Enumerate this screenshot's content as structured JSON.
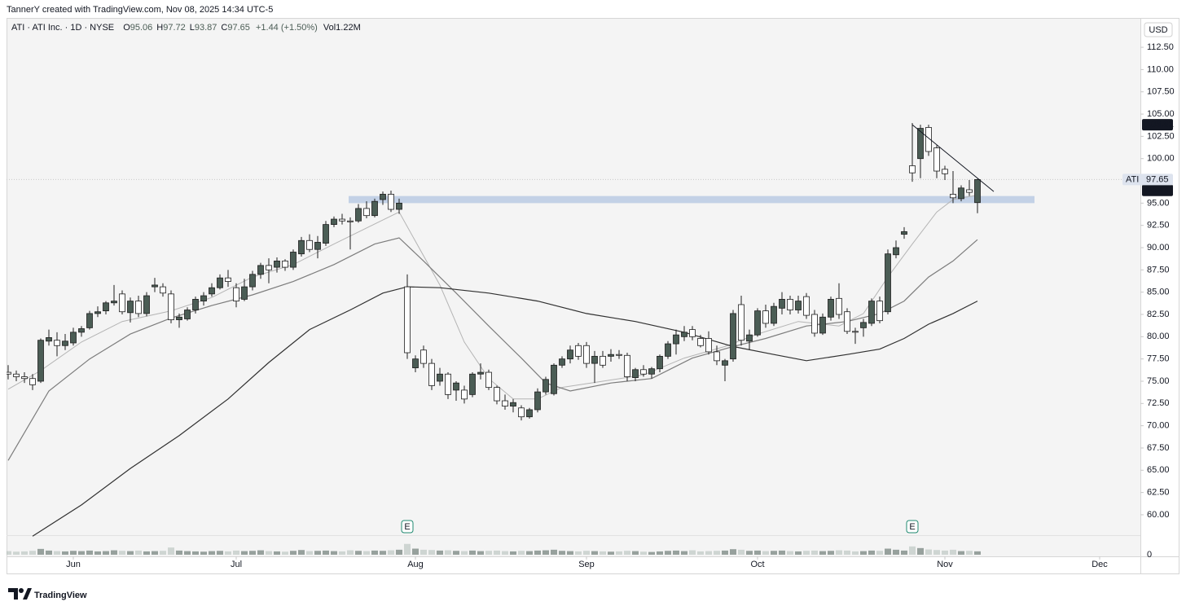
{
  "chart_data": {
    "type": "candlestick",
    "credit": "TannerY created with TradingView.com, Nov 08, 2025 14:34 UTC-5",
    "symbol": "ATI · ATI Inc. · 1D · NYSE",
    "ohlc": [
      {
        "label": "O",
        "value": 95.06
      },
      {
        "label": "H",
        "value": 97.72
      },
      {
        "label": "L",
        "value": 93.87
      },
      {
        "label": "C",
        "value": 97.65
      }
    ],
    "change": "+1.44 (+1.50%)",
    "volume_label": "Vol1.22M",
    "currency": "USD",
    "brand": "TradingView",
    "up_color": "#4b5d55",
    "down_color": "#ffffff",
    "wick_color": "#1e1e1e",
    "xlim": [
      -0.2,
      139
    ],
    "ylim": [
      57.8,
      115.8
    ],
    "xticks": [
      {
        "value": 8,
        "label": "Jun"
      },
      {
        "value": 28,
        "label": "Jul"
      },
      {
        "value": 50,
        "label": "Aug"
      },
      {
        "value": 71,
        "label": "Sep"
      },
      {
        "value": 92,
        "label": "Oct"
      },
      {
        "value": 115,
        "label": "Nov"
      },
      {
        "value": 134,
        "label": "Dec"
      }
    ],
    "yticks": [
      {
        "value": 60,
        "label": "60.00"
      },
      {
        "value": 62.5,
        "label": "62.50"
      },
      {
        "value": 65,
        "label": "65.00"
      },
      {
        "value": 67.5,
        "label": "67.50"
      },
      {
        "value": 70,
        "label": "70.00"
      },
      {
        "value": 72.5,
        "label": "72.50"
      },
      {
        "value": 75,
        "label": "75.00"
      },
      {
        "value": 77.5,
        "label": "77.50"
      },
      {
        "value": 80,
        "label": "80.00"
      },
      {
        "value": 82.5,
        "label": "82.50"
      },
      {
        "value": 85,
        "label": "85.00"
      },
      {
        "value": 87.5,
        "label": "87.50"
      },
      {
        "value": 90,
        "label": "90.00"
      },
      {
        "value": 92.5,
        "label": "92.50"
      },
      {
        "value": 95,
        "label": "95.00"
      },
      {
        "value": 97.5,
        "label": "97.50"
      },
      {
        "value": 100,
        "label": "100.00"
      },
      {
        "value": 102.5,
        "label": "102.50"
      },
      {
        "value": 105,
        "label": "105.00"
      },
      {
        "value": 107.5,
        "label": "107.50"
      },
      {
        "value": 110,
        "label": "110.00"
      },
      {
        "value": 112.5,
        "label": "112.50"
      }
    ],
    "candles": [
      [
        76.0,
        76.8,
        75.2,
        75.8
      ],
      [
        75.8,
        76.2,
        75.0,
        75.5
      ],
      [
        75.5,
        76.0,
        74.8,
        75.3
      ],
      [
        75.3,
        75.8,
        74.0,
        74.6
      ],
      [
        75.0,
        79.8,
        74.8,
        79.6
      ],
      [
        79.5,
        80.8,
        79.0,
        79.9
      ],
      [
        79.6,
        80.5,
        77.8,
        79.0
      ],
      [
        79.0,
        80.3,
        78.5,
        79.5
      ],
      [
        79.3,
        81.0,
        79.0,
        80.5
      ],
      [
        80.5,
        81.2,
        80.0,
        80.9
      ],
      [
        81.0,
        82.9,
        80.8,
        82.6
      ],
      [
        82.6,
        83.4,
        82.2,
        82.8
      ],
      [
        82.9,
        84.0,
        82.5,
        83.8
      ],
      [
        83.8,
        85.8,
        83.5,
        84.0
      ],
      [
        84.8,
        85.2,
        82.5,
        82.8
      ],
      [
        82.7,
        84.4,
        81.6,
        84.0
      ],
      [
        84.0,
        84.6,
        82.2,
        82.6
      ],
      [
        82.6,
        85.0,
        82.3,
        84.6
      ],
      [
        85.6,
        86.6,
        85.0,
        85.8
      ],
      [
        85.6,
        86.0,
        84.5,
        84.9
      ],
      [
        84.8,
        85.2,
        81.5,
        81.9
      ],
      [
        81.9,
        82.6,
        81.0,
        82.2
      ],
      [
        82.0,
        83.3,
        81.8,
        83.0
      ],
      [
        83.0,
        84.5,
        82.6,
        84.2
      ],
      [
        84.0,
        85.0,
        83.5,
        84.6
      ],
      [
        84.8,
        86.0,
        84.5,
        85.5
      ],
      [
        85.5,
        87.0,
        85.3,
        86.6
      ],
      [
        86.6,
        87.5,
        85.6,
        86.2
      ],
      [
        85.5,
        86.0,
        83.3,
        84.0
      ],
      [
        84.2,
        86.5,
        84.0,
        85.6
      ],
      [
        85.6,
        87.4,
        85.2,
        87.0
      ],
      [
        87.0,
        88.3,
        86.5,
        88.0
      ],
      [
        88.0,
        88.8,
        86.0,
        87.5
      ],
      [
        87.8,
        88.9,
        87.2,
        88.5
      ],
      [
        88.5,
        88.7,
        87.4,
        87.8
      ],
      [
        87.8,
        89.8,
        87.5,
        89.5
      ],
      [
        89.3,
        91.2,
        89.0,
        90.8
      ],
      [
        90.8,
        91.5,
        89.5,
        89.8
      ],
      [
        89.8,
        91.3,
        88.8,
        90.6
      ],
      [
        90.5,
        93.0,
        90.2,
        92.6
      ],
      [
        92.6,
        93.5,
        92.3,
        93.2
      ],
      [
        93.2,
        93.8,
        92.6,
        93.0
      ],
      [
        93.0,
        93.4,
        89.8,
        92.9
      ],
      [
        93.0,
        94.9,
        92.8,
        94.4
      ],
      [
        94.4,
        95.2,
        93.3,
        93.6
      ],
      [
        93.6,
        95.5,
        93.4,
        95.2
      ],
      [
        95.4,
        96.3,
        94.8,
        96.0
      ],
      [
        96.0,
        96.4,
        94.0,
        94.3
      ],
      [
        94.3,
        95.5,
        93.8,
        95.0
      ],
      [
        85.6,
        87.0,
        77.5,
        78.2
      ],
      [
        76.5,
        77.9,
        76.0,
        77.5
      ],
      [
        78.5,
        79.0,
        76.5,
        77.0
      ],
      [
        77.0,
        77.5,
        74.0,
        74.5
      ],
      [
        75.0,
        76.5,
        74.5,
        75.8
      ],
      [
        75.8,
        76.0,
        73.0,
        73.5
      ],
      [
        74.0,
        75.0,
        72.8,
        74.8
      ],
      [
        74.0,
        74.5,
        72.5,
        73.0
      ],
      [
        73.5,
        76.0,
        73.2,
        75.8
      ],
      [
        75.8,
        77.0,
        75.2,
        76.0
      ],
      [
        76.0,
        76.3,
        74.0,
        74.3
      ],
      [
        74.3,
        74.5,
        72.4,
        72.8
      ],
      [
        72.8,
        73.5,
        71.8,
        72.2
      ],
      [
        72.2,
        73.0,
        71.5,
        72.6
      ],
      [
        72.0,
        72.3,
        70.6,
        71.0
      ],
      [
        71.0,
        72.0,
        70.8,
        71.8
      ],
      [
        71.8,
        74.2,
        71.5,
        73.8
      ],
      [
        73.8,
        75.5,
        73.5,
        75.2
      ],
      [
        73.6,
        77.0,
        73.4,
        76.8
      ],
      [
        76.8,
        77.8,
        76.5,
        77.5
      ],
      [
        77.5,
        79.0,
        77.0,
        78.5
      ],
      [
        79.0,
        79.3,
        77.4,
        77.8
      ],
      [
        79.0,
        79.4,
        76.5,
        77.0
      ],
      [
        77.0,
        78.4,
        74.8,
        77.8
      ],
      [
        77.8,
        78.4,
        76.5,
        76.8
      ],
      [
        77.8,
        78.6,
        77.2,
        78.0
      ],
      [
        78.0,
        78.5,
        77.5,
        77.9
      ],
      [
        77.9,
        78.2,
        75.0,
        75.5
      ],
      [
        75.4,
        76.5,
        75.0,
        76.3
      ],
      [
        76.3,
        76.8,
        75.5,
        75.8
      ],
      [
        75.8,
        76.6,
        75.3,
        76.4
      ],
      [
        76.4,
        78.0,
        76.0,
        77.8
      ],
      [
        77.8,
        79.5,
        77.5,
        79.2
      ],
      [
        79.2,
        80.8,
        78.0,
        80.2
      ],
      [
        80.0,
        81.2,
        79.5,
        80.5
      ],
      [
        80.8,
        81.2,
        79.6,
        80.0
      ],
      [
        79.8,
        80.2,
        78.8,
        79.0
      ],
      [
        79.8,
        80.6,
        78.0,
        78.3
      ],
      [
        78.3,
        79.0,
        76.8,
        77.3
      ],
      [
        76.8,
        77.5,
        75.0,
        77.3
      ],
      [
        77.5,
        83.0,
        77.2,
        82.6
      ],
      [
        83.6,
        84.6,
        79.0,
        79.6
      ],
      [
        79.5,
        80.8,
        78.5,
        80.2
      ],
      [
        80.2,
        83.2,
        80.0,
        82.9
      ],
      [
        82.9,
        83.6,
        81.0,
        81.5
      ],
      [
        81.5,
        83.8,
        81.2,
        83.4
      ],
      [
        83.2,
        85.0,
        82.5,
        84.2
      ],
      [
        84.2,
        84.6,
        82.5,
        83.0
      ],
      [
        83.0,
        84.6,
        82.6,
        84.0
      ],
      [
        84.5,
        84.9,
        82.0,
        82.4
      ],
      [
        82.5,
        83.0,
        80.0,
        80.4
      ],
      [
        80.4,
        82.6,
        80.2,
        82.2
      ],
      [
        82.2,
        84.5,
        81.8,
        84.2
      ],
      [
        84.3,
        86.0,
        82.0,
        82.5
      ],
      [
        82.8,
        83.2,
        80.3,
        80.6
      ],
      [
        80.6,
        81.0,
        79.2,
        80.5
      ],
      [
        81.0,
        82.0,
        80.0,
        81.6
      ],
      [
        81.5,
        84.3,
        81.2,
        84.0
      ],
      [
        84.0,
        84.5,
        81.5,
        81.8
      ],
      [
        82.8,
        89.8,
        82.5,
        89.3
      ],
      [
        89.2,
        90.8,
        88.8,
        90.0
      ],
      [
        91.5,
        92.3,
        91.0,
        91.8
      ],
      [
        99.2,
        104.0,
        97.4,
        98.4
      ],
      [
        100.0,
        103.8,
        97.8,
        103.4
      ],
      [
        103.5,
        103.8,
        100.3,
        100.8
      ],
      [
        101.2,
        101.5,
        97.8,
        98.6
      ],
      [
        98.8,
        99.2,
        97.6,
        98.3
      ],
      [
        96.0,
        98.6,
        95.0,
        95.6
      ],
      [
        95.5,
        97.0,
        95.2,
        96.7
      ],
      [
        96.5,
        97.6,
        95.8,
        96.21
      ],
      [
        95.06,
        97.72,
        93.87,
        97.65
      ]
    ],
    "volume": [
      1.3,
      1.1,
      1.2,
      1.4,
      2.1,
      1.5,
      1.3,
      1.2,
      1.4,
      1.3,
      1.5,
      1.2,
      1.3,
      1.6,
      1.4,
      1.3,
      1.5,
      1.2,
      1.3,
      1.4,
      2.6,
      1.5,
      1.3,
      1.2,
      1.1,
      1.3,
      1.4,
      1.2,
      1.5,
      1.3,
      1.4,
      1.6,
      1.3,
      1.2,
      1.1,
      1.4,
      1.7,
      1.3,
      1.4,
      1.5,
      1.3,
      1.2,
      1.6,
      1.4,
      1.3,
      1.5,
      1.4,
      1.6,
      1.8,
      3.9,
      2.2,
      1.8,
      1.7,
      1.5,
      1.6,
      1.4,
      1.3,
      1.5,
      1.3,
      1.4,
      1.5,
      1.3,
      1.2,
      1.4,
      1.3,
      1.5,
      1.6,
      1.8,
      1.4,
      1.3,
      1.2,
      1.4,
      1.3,
      1.2,
      1.1,
      1.2,
      1.4,
      1.3,
      1.1,
      1.0,
      1.2,
      1.4,
      1.5,
      1.3,
      1.6,
      1.2,
      1.3,
      1.4,
      1.5,
      2.0,
      1.8,
      1.4,
      1.5,
      1.3,
      1.4,
      1.5,
      1.3,
      1.2,
      1.4,
      1.5,
      1.3,
      1.4,
      1.6,
      1.5,
      1.2,
      1.3,
      1.5,
      1.4,
      2.2,
      1.8,
      1.5,
      3.0,
      2.4,
      1.9,
      1.7,
      1.5,
      1.8,
      1.3,
      1.4,
      1.22
    ],
    "volume_ticks": [
      0
    ],
    "series": [
      {
        "color": "#b4b4b4",
        "x": [
          0,
          4,
          9,
          14,
          20,
          25,
          30,
          35,
          40,
          46,
          48,
          53,
          56,
          59,
          62,
          65,
          68,
          73,
          78,
          83,
          88,
          92,
          97,
          102,
          105,
          108,
          111,
          114,
          116,
          119
        ],
        "values": [
          74.1,
          76.2,
          79.4,
          81.7,
          82.9,
          84.4,
          86.7,
          88.1,
          90.4,
          93.1,
          94.0,
          85.8,
          79.4,
          75.3,
          73.0,
          73.0,
          74.3,
          75.0,
          75.7,
          77.6,
          78.9,
          80.3,
          81.7,
          81.2,
          82.6,
          86.7,
          90.4,
          94.0,
          95.4,
          95.9
        ]
      },
      {
        "color": "#7c7c7c",
        "x": [
          0,
          5,
          10,
          15,
          20,
          25,
          30,
          35,
          40,
          45,
          48,
          51,
          55,
          59,
          63,
          66,
          69,
          74,
          79,
          84,
          89,
          93,
          98,
          103,
          107,
          110,
          113,
          116,
          119
        ],
        "values": [
          66.1,
          73.9,
          77.5,
          80.3,
          82.1,
          83.5,
          84.7,
          86.2,
          88.1,
          90.4,
          91.1,
          88.5,
          84.9,
          81.2,
          77.6,
          74.8,
          73.9,
          74.8,
          75.3,
          77.6,
          78.9,
          79.8,
          81.2,
          81.7,
          82.6,
          84.0,
          86.7,
          88.5,
          90.9
        ]
      },
      {
        "color": "#303030",
        "x": [
          3,
          9,
          15,
          21,
          27,
          32,
          37,
          42,
          46,
          49,
          53,
          59,
          65,
          71,
          77,
          83,
          89,
          94,
          98,
          103,
          107,
          110,
          113,
          116,
          119
        ],
        "values": [
          57.6,
          61.1,
          65.2,
          68.9,
          73.0,
          77.1,
          80.8,
          83.0,
          84.9,
          85.6,
          85.5,
          84.9,
          84.0,
          82.6,
          81.7,
          80.5,
          78.9,
          78.0,
          77.3,
          78.0,
          78.6,
          79.8,
          81.4,
          82.6,
          84.0
        ]
      }
    ],
    "zone": {
      "x": [
        41.8,
        126
      ],
      "values": [
        95.0,
        95.8
      ],
      "color": "#c3d1e6"
    },
    "trendline": {
      "x": [
        111,
        121
      ],
      "values": [
        103.8,
        96.3
      ]
    },
    "events": [
      {
        "x": 49,
        "label": "E"
      },
      {
        "x": 111,
        "label": "E"
      }
    ],
    "last_price": {
      "name": "ATI",
      "value": 97.65
    },
    "price_tags": [
      103.81,
      96.43
    ]
  }
}
